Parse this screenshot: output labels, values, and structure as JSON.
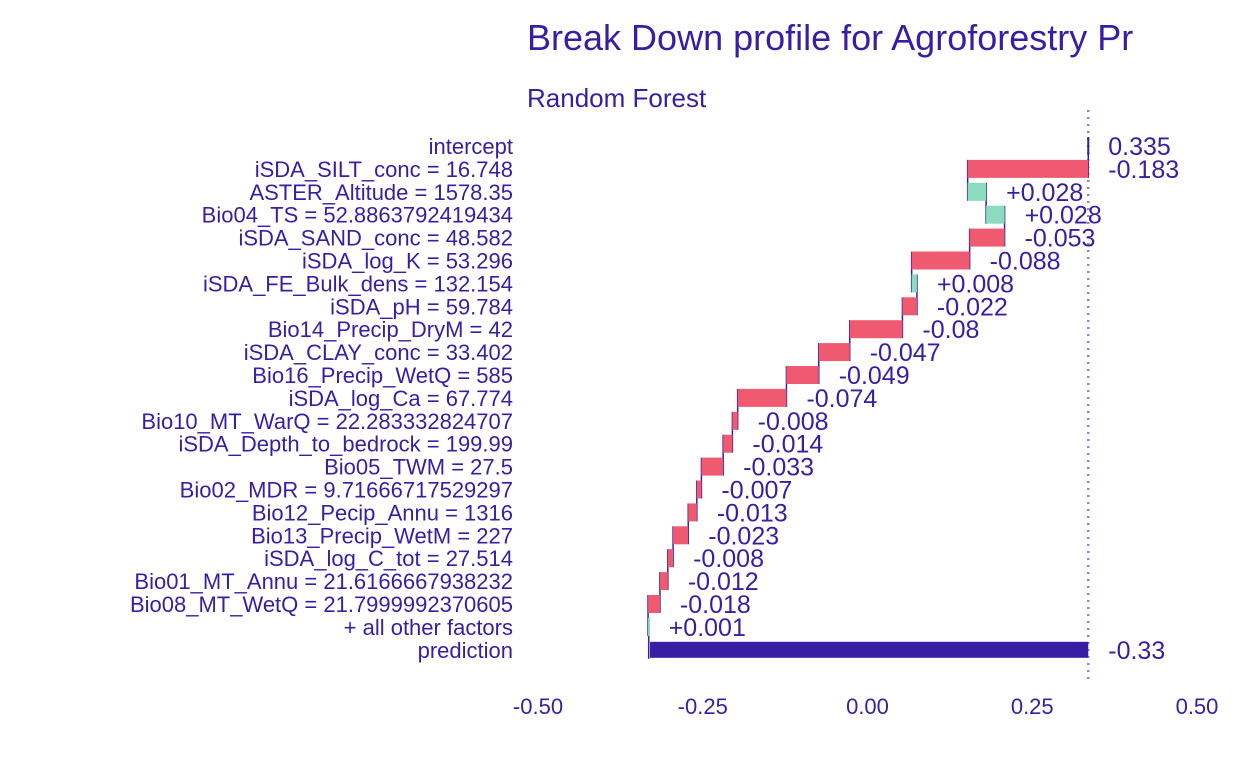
{
  "chart_data": {
    "type": "bar",
    "title": "Break Down profile for Agroforestry Pr",
    "subtitle": "Random Forest",
    "xlim": [
      -0.5,
      0.5
    ],
    "x_ticks": [
      "-0.50",
      "-0.25",
      "0.00",
      "0.25",
      "0.50"
    ],
    "x_tick_values": [
      -0.5,
      -0.25,
      0,
      0.25,
      0.5
    ],
    "grid": false,
    "reference_line": 0.335,
    "colors": {
      "positive": "#8bdcbe",
      "negative": "#f05a71",
      "prediction": "#371ea3",
      "text": "#371ea3",
      "connector": "#371ea3"
    },
    "bars": [
      {
        "label": "intercept",
        "value": 0.335,
        "display": "0.335",
        "kind": "intercept"
      },
      {
        "label": "iSDA_SILT_conc = 16.748",
        "value": -0.183,
        "display": "-0.183",
        "kind": "change"
      },
      {
        "label": "ASTER_Altitude = 1578.35",
        "value": 0.028,
        "display": "+0.028",
        "kind": "change"
      },
      {
        "label": "Bio04_TS = 52.8863792419434",
        "value": 0.028,
        "display": "+0.028",
        "kind": "change"
      },
      {
        "label": "iSDA_SAND_conc = 48.582",
        "value": -0.053,
        "display": "-0.053",
        "kind": "change"
      },
      {
        "label": "iSDA_log_K = 53.296",
        "value": -0.088,
        "display": "-0.088",
        "kind": "change"
      },
      {
        "label": "iSDA_FE_Bulk_dens = 132.154",
        "value": 0.008,
        "display": "+0.008",
        "kind": "change"
      },
      {
        "label": "iSDA_pH = 59.784",
        "value": -0.022,
        "display": "-0.022",
        "kind": "change"
      },
      {
        "label": "Bio14_Precip_DryM = 42",
        "value": -0.08,
        "display": "-0.08",
        "kind": "change"
      },
      {
        "label": "iSDA_CLAY_conc = 33.402",
        "value": -0.047,
        "display": "-0.047",
        "kind": "change"
      },
      {
        "label": "Bio16_Precip_WetQ = 585",
        "value": -0.049,
        "display": "-0.049",
        "kind": "change"
      },
      {
        "label": "iSDA_log_Ca = 67.774",
        "value": -0.074,
        "display": "-0.074",
        "kind": "change"
      },
      {
        "label": "Bio10_MT_WarQ = 22.283332824707",
        "value": -0.008,
        "display": "-0.008",
        "kind": "change"
      },
      {
        "label": "iSDA_Depth_to_bedrock = 199.99",
        "value": -0.014,
        "display": "-0.014",
        "kind": "change"
      },
      {
        "label": "Bio05_TWM = 27.5",
        "value": -0.033,
        "display": "-0.033",
        "kind": "change"
      },
      {
        "label": "Bio02_MDR = 9.71666717529297",
        "value": -0.007,
        "display": "-0.007",
        "kind": "change"
      },
      {
        "label": "Bio12_Pecip_Annu = 1316",
        "value": -0.013,
        "display": "-0.013",
        "kind": "change"
      },
      {
        "label": "Bio13_Precip_WetM = 227",
        "value": -0.023,
        "display": "-0.023",
        "kind": "change"
      },
      {
        "label": "iSDA_log_C_tot = 27.514",
        "value": -0.008,
        "display": "-0.008",
        "kind": "change"
      },
      {
        "label": "Bio01_MT_Annu = 21.6166667938232",
        "value": -0.012,
        "display": "-0.012",
        "kind": "change"
      },
      {
        "label": "Bio08_MT_WetQ = 21.7999992370605",
        "value": -0.018,
        "display": "-0.018",
        "kind": "change"
      },
      {
        "label": "+ all other factors",
        "value": 0.001,
        "display": "+0.001",
        "kind": "change"
      },
      {
        "label": "prediction",
        "value": -0.33,
        "display": "-0.33",
        "kind": "prediction"
      }
    ]
  }
}
